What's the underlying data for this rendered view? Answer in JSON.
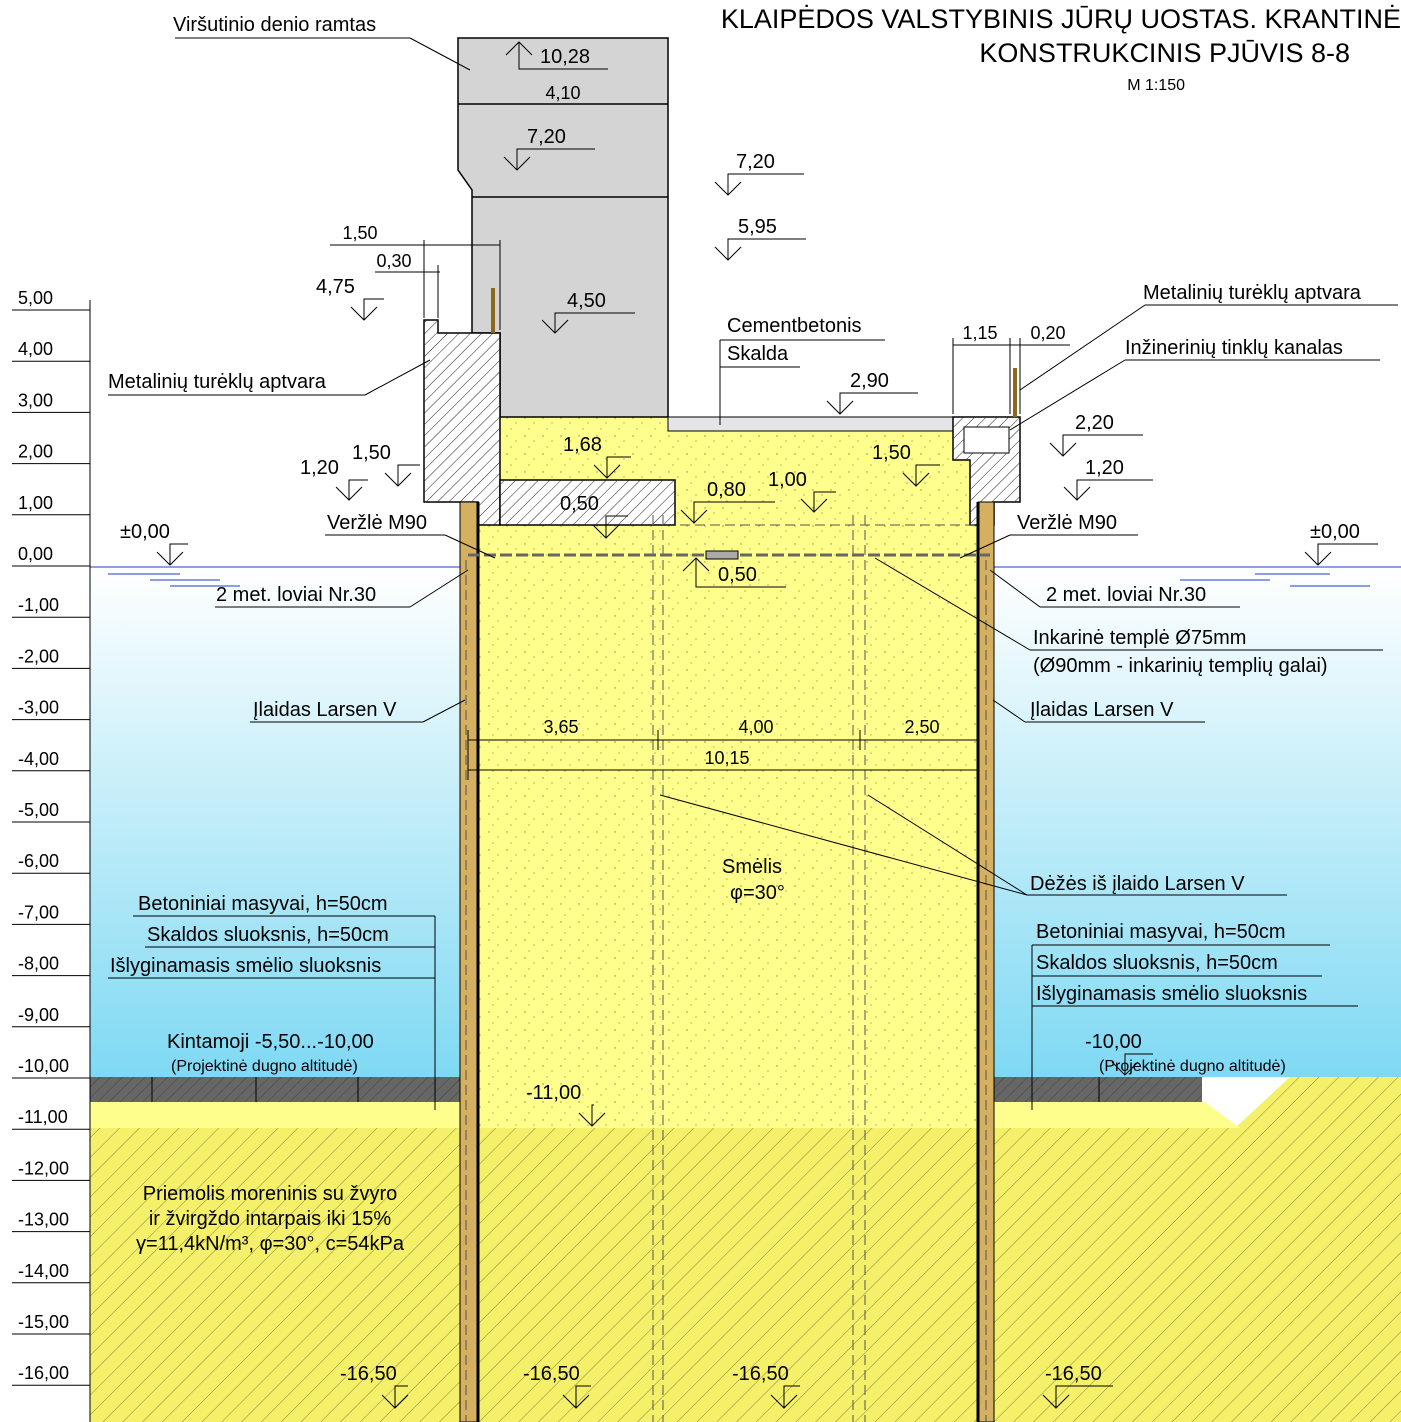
{
  "title": {
    "line1": "KLAIPĖDOS VALSTYBINIS JŪRŲ UOSTAS. KRANTINĖ",
    "line2": "KONSTRUKCINIS PJŪVIS 8-8",
    "scale": "M 1:150"
  },
  "scale_labels": [
    "5,00",
    "4,00",
    "3,00",
    "2,00",
    "1,00",
    "0,00",
    "-1,00",
    "-2,00",
    "-3,00",
    "-4,00",
    "-5,00",
    "-6,00",
    "-7,00",
    "-8,00",
    "-9,00",
    "-10,00",
    "-11,00",
    "-12,00",
    "-13,00",
    "-14,00",
    "-15,00",
    "-16,00"
  ],
  "labels": {
    "virsutinio": "Viršutinio denio ramtas",
    "cementbetonis": "Cementbetonis",
    "skalda": "Skalda",
    "turekliu_left": "Metalinių turėklų aptvara",
    "turekliu_right": "Metalinių turėklų aptvara",
    "kanalas": "Inžinerinių tinklų kanalas",
    "verzle_left": "Veržlė M90",
    "verzle_right": "Veržlė M90",
    "loviai_left": "2 met. loviai Nr.30",
    "loviai_right": "2 met. loviai Nr.30",
    "templ_1": "Inkarinė templė Ø75mm",
    "templ_2": "(Ø90mm - inkarinių templių galai)",
    "ilaidas_left": "Įlaidas Larsen V",
    "ilaidas_right": "Įlaidas Larsen V",
    "dezes": "Dėžės iš įlaido Larsen V",
    "smelis": "Smėlis",
    "phi": "φ=30°",
    "bet_left": "Betoniniai masyvai, h=50cm",
    "skal_left": "Skaldos sluoksnis, h=50cm",
    "isl_left": "Išlyginamasis smėlio sluoksnis",
    "bet_right": "Betoniniai masyvai, h=50cm",
    "skal_right": "Skaldos sluoksnis, h=50cm",
    "isl_right": "Išlyginamasis smėlio sluoksnis",
    "kintamoji": "Kintamoji -5,50...-10,00",
    "proj_left": "(Projektinė dugno altitudė)",
    "proj_right": "(Projektinė dugno altitudė)",
    "priemolis_1": "Priemolis moreninis su žvyro",
    "priemolis_2": "ir žvirgždo intarpais iki 15%",
    "priemolis_3": "γ=11,4kN/m³, φ=30°, c=54kPa"
  },
  "levels": {
    "l1028": "10,28",
    "l720a": "7,20",
    "l720b": "7,20",
    "l595": "5,95",
    "l475": "4,75",
    "l450": "4,50",
    "l290": "2,90",
    "l220": "2,20",
    "l168": "1,68",
    "l150a": "1,50",
    "l150b": "1,50",
    "l120a": "1,20",
    "l120b": "1,20",
    "l080": "0,80",
    "l100": "1,00",
    "l050a": "0,50",
    "l050b": "0,50",
    "l000a": "±0,00",
    "l000b": "±0,00",
    "l1000a": "-10,00",
    "l1100": "-11,00",
    "l1650a": "-16,50",
    "l1650b": "-16,50",
    "l1650c": "-16,50",
    "l1650d": "-16,50"
  },
  "dims": {
    "d410": "4,10",
    "d150": "1,50",
    "d030": "0,30",
    "d115": "1,15",
    "d020": "0,20",
    "d365": "3,65",
    "d400": "4,00",
    "d250": "2,50",
    "d1015": "10,15"
  },
  "colors": {
    "water_top": "#ffffff",
    "water_bottom": "#7fd9f3",
    "sand": "#fefe8c",
    "clay": "#f5f06a",
    "concrete": "#d4d4d4",
    "sheet_pile": "#d4b060",
    "hatch": "#444444"
  }
}
